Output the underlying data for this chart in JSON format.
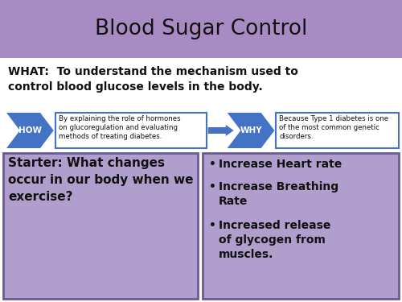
{
  "title": "Blood Sugar Control",
  "title_bg": "#a98bc4",
  "title_color": "#111111",
  "bg_color": "#ffffff",
  "what_text": "WHAT:  To understand the mechanism used to\ncontrol blood glucose levels in the body.",
  "how_label": "HOW",
  "how_box_text": "By explaining the role of hormones\non glucoregulation and evaluating\nmethods of treating diabetes.",
  "why_label": "WHY",
  "why_box_text": "Because Type 1 diabetes is one\nof the most common genetic\ndisorders.",
  "arrow_color": "#4472c4",
  "box_border_color": "#4472c4",
  "bottom_left_text": "Starter: What changes\noccur in our body when we\nexercise?",
  "bottom_right_bullets": [
    "Increase Heart rate",
    "Increase Breathing\nRate",
    "Increased release\nof glycogen from\nmuscles."
  ],
  "bottom_box_bg": "#b09fcc",
  "bottom_box_border": "#6b5b95"
}
